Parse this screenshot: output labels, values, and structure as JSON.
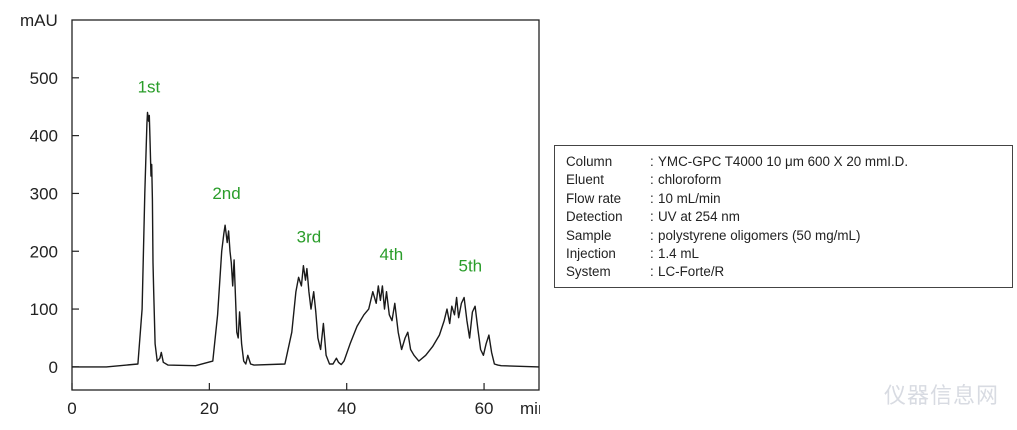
{
  "chart_data": {
    "type": "line",
    "xlabel": "min",
    "ylabel": "mAU",
    "xlim": [
      0,
      68
    ],
    "ylim": [
      -40,
      600
    ],
    "xticks": [
      0,
      20,
      40,
      60
    ],
    "yticks": [
      0,
      100,
      200,
      300,
      400,
      500
    ],
    "grid": false,
    "annotations": [
      {
        "text": "1st",
        "x": 11.2,
        "y": 475
      },
      {
        "text": "2nd",
        "x": 22.5,
        "y": 290
      },
      {
        "text": "3rd",
        "x": 34.5,
        "y": 215
      },
      {
        "text": "4th",
        "x": 46.5,
        "y": 185
      },
      {
        "text": "5th",
        "x": 58.0,
        "y": 165
      }
    ],
    "series": [
      {
        "x": [
          0,
          5,
          9.6,
          10.2,
          10.6,
          10.9,
          11.0,
          11.15,
          11.25,
          11.35,
          11.5,
          11.6,
          11.7,
          11.8,
          11.9,
          12.1,
          12.4,
          12.8,
          13.0,
          13.3,
          14,
          18,
          20.5,
          21.2,
          21.8,
          22.1,
          22.3,
          22.6,
          22.8,
          23.0,
          23.2,
          23.4,
          23.6,
          23.8,
          24.0,
          24.2,
          24.4,
          24.7,
          25.0,
          25.3,
          25.6,
          26.0,
          26.5,
          31,
          32.0,
          32.6,
          33.0,
          33.4,
          33.7,
          34.0,
          34.2,
          34.5,
          34.8,
          35.2,
          35.5,
          35.8,
          36.2,
          36.6,
          37.0,
          37.5,
          38.0,
          38.5,
          38.8,
          39.2,
          39.6,
          40.5,
          41.5,
          42.5,
          43.2,
          43.8,
          44.3,
          44.6,
          44.9,
          45.2,
          45.5,
          45.8,
          46.2,
          46.6,
          47.0,
          47.5,
          48.0,
          48.5,
          48.9,
          49.3,
          49.8,
          50.5,
          51.5,
          52.5,
          53.5,
          54.2,
          54.6,
          55.0,
          55.3,
          55.7,
          56.0,
          56.3,
          56.7,
          57.1,
          57.5,
          57.9,
          58.3,
          58.7,
          59.1,
          59.5,
          59.9,
          60.3,
          60.7,
          61.1,
          61.5,
          62.0,
          62.5,
          68
        ],
        "y": [
          0,
          0,
          5,
          100,
          300,
          420,
          440,
          425,
          435,
          400,
          330,
          350,
          290,
          180,
          130,
          40,
          10,
          15,
          25,
          8,
          3,
          2,
          10,
          90,
          200,
          230,
          245,
          215,
          235,
          200,
          180,
          140,
          185,
          120,
          60,
          50,
          95,
          40,
          10,
          5,
          20,
          5,
          3,
          5,
          60,
          130,
          155,
          140,
          175,
          150,
          170,
          130,
          100,
          130,
          95,
          50,
          30,
          75,
          20,
          5,
          5,
          15,
          8,
          4,
          10,
          40,
          70,
          90,
          100,
          130,
          110,
          140,
          115,
          140,
          100,
          130,
          90,
          80,
          110,
          60,
          30,
          50,
          60,
          30,
          20,
          10,
          20,
          35,
          55,
          80,
          100,
          75,
          105,
          90,
          120,
          85,
          110,
          120,
          80,
          50,
          95,
          105,
          65,
          30,
          20,
          40,
          55,
          25,
          5,
          3,
          2,
          0
        ]
      }
    ]
  },
  "conditions": [
    {
      "key": "Column",
      "sep": ":",
      "value": "YMC-GPC  T4000 10 μm 600 X 20 mmI.D."
    },
    {
      "key": "Eluent",
      "sep": ":",
      "value": "chloroform"
    },
    {
      "key": "Flow rate",
      "sep": ":",
      "value": "10 mL/min"
    },
    {
      "key": "Detection",
      "sep": ":",
      "value": "UV at 254 nm"
    },
    {
      "key": "Sample",
      "sep": ":",
      "value": "polystyrene oligomers (50 mg/mL)"
    },
    {
      "key": "Injection",
      "sep": ":",
      "value": "1.4 mL"
    },
    {
      "key": "System",
      "sep": ":",
      "value": "LC-Forte/R"
    }
  ],
  "watermark": "仪器信息网",
  "colors": {
    "trace": "#1a1a1a",
    "peak_label": "#2a9d2a",
    "axis": "#222222"
  }
}
